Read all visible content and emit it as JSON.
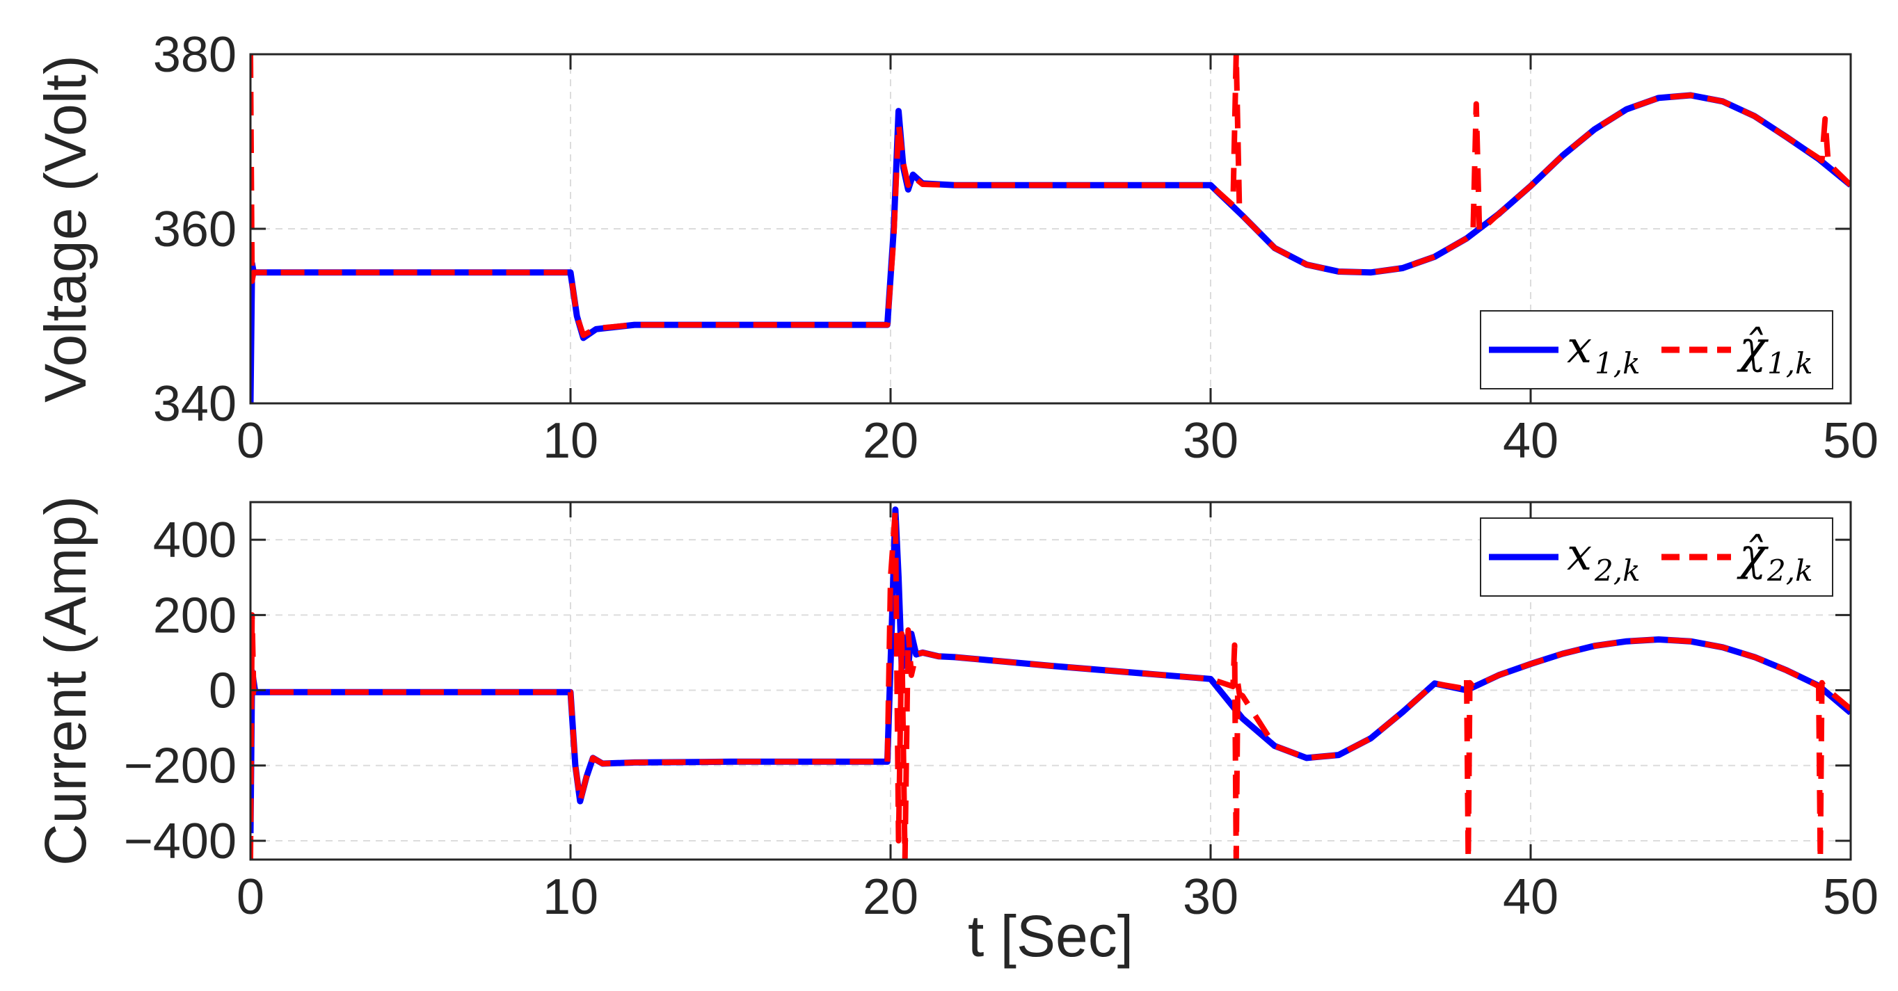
{
  "chart_data": [
    {
      "type": "line",
      "ylabel": "Voltage (Volt)",
      "xlim": [
        0,
        50
      ],
      "ylim": [
        340,
        380
      ],
      "xticks": [
        0,
        10,
        20,
        30,
        40,
        50
      ],
      "yticks": [
        340,
        360,
        380
      ],
      "xtick_labels": [
        "0",
        "10",
        "20",
        "30",
        "40",
        "50"
      ],
      "ytick_labels": [
        "340",
        "360",
        "380"
      ],
      "grid": true,
      "legend": {
        "placement": "bottom-right",
        "entries": [
          {
            "symbol": "x",
            "subscript": "1,k",
            "color": "#0000ff",
            "style": "solid"
          },
          {
            "symbol": "χ̂",
            "subscript": "1,k",
            "color": "#ff0000",
            "style": "dashed"
          }
        ]
      },
      "series": [
        {
          "color": "#0000ff",
          "style": "solid",
          "x": [
            0,
            0.05,
            0.1,
            0.3,
            5,
            10,
            10.2,
            10.4,
            10.8,
            12,
            15,
            19.9,
            20.1,
            20.25,
            20.4,
            20.55,
            20.7,
            21,
            22,
            25,
            30,
            31,
            32,
            33,
            34,
            35,
            36,
            37,
            38,
            39,
            40,
            41,
            42,
            43,
            44,
            45,
            46,
            47,
            48,
            49,
            50
          ],
          "y": [
            340,
            356,
            355,
            355,
            355,
            355,
            350,
            347.5,
            348.5,
            349,
            349,
            349,
            360,
            373.5,
            367,
            364.5,
            366.2,
            365.2,
            365,
            365,
            365,
            361.5,
            357.8,
            355.9,
            355.1,
            355,
            355.5,
            356.8,
            358.9,
            361.7,
            364.9,
            368.4,
            371.4,
            373.7,
            375,
            375.3,
            374.6,
            372.9,
            370.5,
            368,
            365
          ]
        },
        {
          "color": "#ff0000",
          "style": "dashed",
          "x": [
            0,
            0.05,
            0.1,
            0.3,
            5,
            10,
            10.2,
            10.4,
            10.8,
            12,
            15,
            19.9,
            20.1,
            20.25,
            20.4,
            20.55,
            20.7,
            21,
            22,
            25,
            30,
            30.7,
            30.8,
            30.9,
            31,
            32,
            33,
            34,
            35,
            36,
            37,
            38,
            38.2,
            38.3,
            38.4,
            39,
            40,
            41,
            42,
            43,
            44,
            45,
            46,
            47,
            48,
            49,
            49.1,
            49.2,
            49.3,
            50
          ],
          "y": [
            380,
            354,
            355,
            355,
            355,
            355,
            350,
            347.8,
            348.6,
            349,
            349,
            349,
            359,
            372,
            367.5,
            365,
            366,
            365.1,
            365,
            365,
            365,
            362.7,
            380,
            362.3,
            361.5,
            357.8,
            355.9,
            355.1,
            355,
            355.5,
            356.8,
            358.9,
            359.4,
            374.3,
            359.7,
            361.7,
            364.9,
            368.4,
            371.4,
            373.7,
            375,
            375.3,
            374.6,
            372.9,
            370.5,
            368.1,
            367.8,
            372.6,
            367.5,
            365
          ]
        }
      ]
    },
    {
      "type": "line",
      "xlabel": "t [Sec]",
      "ylabel": "Current (Amp)",
      "xlim": [
        0,
        50
      ],
      "ylim": [
        -450,
        500
      ],
      "xticks": [
        0,
        10,
        20,
        30,
        40,
        50
      ],
      "yticks": [
        -400,
        -200,
        0,
        200,
        400
      ],
      "xtick_labels": [
        "0",
        "10",
        "20",
        "30",
        "40",
        "50"
      ],
      "ytick_labels": [
        "−400",
        "−200",
        "0",
        "200",
        "400"
      ],
      "grid": true,
      "legend": {
        "placement": "top-right",
        "entries": [
          {
            "symbol": "x",
            "subscript": "2,k",
            "color": "#0000ff",
            "style": "solid"
          },
          {
            "symbol": "χ̂",
            "subscript": "2,k",
            "color": "#ff0000",
            "style": "dashed"
          }
        ]
      },
      "series": [
        {
          "color": "#0000ff",
          "style": "solid",
          "x": [
            0,
            0.05,
            0.15,
            0.3,
            5,
            10,
            10.15,
            10.3,
            10.5,
            10.7,
            11,
            12,
            15,
            19.9,
            20.05,
            20.15,
            20.25,
            20.35,
            20.45,
            20.55,
            20.65,
            20.8,
            21,
            21.5,
            22,
            25,
            30,
            31,
            32,
            33,
            34,
            35,
            36,
            37,
            38,
            39,
            40,
            41,
            42,
            43,
            44,
            45,
            46,
            47,
            48,
            49,
            50
          ],
          "y": [
            -380,
            50,
            -5,
            -5,
            -5,
            -5,
            -200,
            -295,
            -230,
            -180,
            -195,
            -192,
            -190,
            -190,
            200,
            480,
            300,
            60,
            140,
            60,
            150,
            95,
            100,
            90,
            88,
            65,
            30,
            -75,
            -148,
            -180,
            -172,
            -128,
            -58,
            18,
            0,
            40,
            70,
            97,
            118,
            130,
            135,
            130,
            114,
            88,
            53,
            12,
            -60
          ]
        },
        {
          "color": "#ff0000",
          "style": "dashed",
          "x": [
            0,
            0.05,
            0.1,
            0.3,
            5,
            10,
            10.15,
            10.3,
            10.5,
            10.7,
            11,
            12,
            15,
            19.9,
            20,
            20.15,
            20.25,
            20.35,
            20.45,
            20.55,
            20.65,
            20.8,
            21,
            21.5,
            22,
            25,
            30,
            30.7,
            30.75,
            30.8,
            30.85,
            30.9,
            31,
            32,
            33,
            34,
            35,
            36,
            37,
            37.9,
            38,
            38.05,
            38.1,
            38.2,
            38.3,
            39,
            40,
            41,
            42,
            43,
            44,
            45,
            46,
            47,
            48,
            48.9,
            49,
            49.05,
            49.1,
            49.2,
            49.3,
            50
          ],
          "y": [
            -450,
            200,
            -5,
            -5,
            -5,
            -5,
            -200,
            -295,
            -230,
            -180,
            -195,
            -192,
            -190,
            -190,
            300,
            480,
            -400,
            150,
            -450,
            160,
            40,
            95,
            100,
            90,
            88,
            65,
            30,
            10,
            120,
            -450,
            20,
            -10,
            -15,
            -148,
            -180,
            -172,
            -128,
            -58,
            18,
            5,
            30,
            -450,
            20,
            10,
            12,
            40,
            70,
            97,
            118,
            130,
            135,
            130,
            114,
            88,
            53,
            15,
            10,
            -450,
            20,
            5,
            0,
            -50
          ]
        }
      ]
    }
  ]
}
